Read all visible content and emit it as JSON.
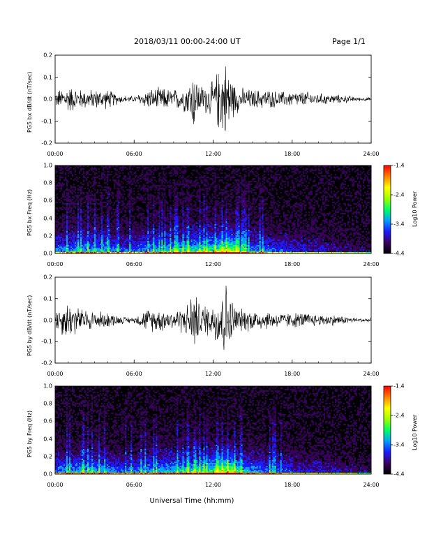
{
  "header": {
    "title": "2018/03/11  00:00-24:00 UT",
    "page": "Page 1/1"
  },
  "footer": {
    "xlabel": "Universal Time (hh:mm)"
  },
  "colors": {
    "trace": "#000000",
    "colorbar": [
      "#000000",
      "#3a0060",
      "#1a1aff",
      "#00a0ff",
      "#00ff60",
      "#a0ff00",
      "#ffff00",
      "#ff8000",
      "#ff0000"
    ]
  },
  "chart_data": [
    {
      "type": "line",
      "ylabel": "PG5 bx dB/dt (nT/sec)",
      "xticks": [
        "00:00",
        "06:00",
        "12:00",
        "18:00",
        "24:00"
      ],
      "yticks": [
        "0.2",
        "0.1",
        "0.0",
        "-0.1",
        "-0.2"
      ],
      "xlim": [
        0,
        24
      ],
      "ylim": [
        -0.2,
        0.2
      ],
      "x_units": "hours UT",
      "amplitude_envelope": {
        "hours": [
          0,
          1,
          2,
          3,
          4,
          5,
          6,
          7,
          8,
          9,
          10,
          10.5,
          11,
          12,
          12.5,
          13,
          13.5,
          14,
          15,
          16,
          17,
          18,
          19,
          20,
          21,
          22,
          23,
          24
        ],
        "amp": [
          0.04,
          0.07,
          0.05,
          0.05,
          0.05,
          0.02,
          0.015,
          0.05,
          0.06,
          0.05,
          0.07,
          0.16,
          0.07,
          0.09,
          0.18,
          0.2,
          0.1,
          0.06,
          0.05,
          0.05,
          0.04,
          0.04,
          0.04,
          0.03,
          0.025,
          0.02,
          0.01,
          0.008
        ]
      }
    },
    {
      "type": "heatmap",
      "ylabel": "PG5 bx Freq (Hz)",
      "xticks": [
        "00:00",
        "06:00",
        "12:00",
        "18:00",
        "24:00"
      ],
      "yticks": [
        "1.0",
        "0.8",
        "0.6",
        "0.4",
        "0.2",
        "0.0"
      ],
      "xlim": [
        0,
        24
      ],
      "ylim": [
        0,
        1.0
      ],
      "colorbar_label": "Log10 Power",
      "colorbar_ticks": [
        "-1.4",
        "-2.4",
        "-3.4",
        "-4.4"
      ],
      "color_range": [
        -4.4,
        -1.4
      ]
    },
    {
      "type": "line",
      "ylabel": "PG5 by dB/dt (nT/sec)",
      "xticks": [
        "00:00",
        "06:00",
        "12:00",
        "18:00",
        "24:00"
      ],
      "yticks": [
        "0.2",
        "0.1",
        "0.0",
        "-0.1",
        "-0.2"
      ],
      "xlim": [
        0,
        24
      ],
      "ylim": [
        -0.2,
        0.2
      ],
      "x_units": "hours UT",
      "amplitude_envelope": {
        "hours": [
          0,
          1,
          2,
          3,
          4,
          5,
          6,
          7,
          8,
          9,
          10,
          10.5,
          11,
          12,
          12.5,
          13,
          13.5,
          14,
          15,
          16,
          17,
          18,
          19,
          20,
          21,
          22,
          23,
          24
        ],
        "amp": [
          0.06,
          0.1,
          0.06,
          0.05,
          0.04,
          0.02,
          0.015,
          0.06,
          0.06,
          0.05,
          0.08,
          0.17,
          0.08,
          0.09,
          0.19,
          0.2,
          0.1,
          0.06,
          0.06,
          0.05,
          0.04,
          0.04,
          0.04,
          0.03,
          0.03,
          0.02,
          0.012,
          0.01
        ]
      }
    },
    {
      "type": "heatmap",
      "ylabel": "PG5 by Freq (Hz)",
      "xticks": [
        "00:00",
        "06:00",
        "12:00",
        "18:00",
        "24:00"
      ],
      "yticks": [
        "1.0",
        "0.8",
        "0.6",
        "0.4",
        "0.2",
        "0.0"
      ],
      "xlim": [
        0,
        24
      ],
      "ylim": [
        0,
        1.0
      ],
      "colorbar_label": "Log10 Power",
      "colorbar_ticks": [
        "-1.4",
        "-2.4",
        "-3.4",
        "-4.4"
      ],
      "color_range": [
        -4.4,
        -1.4
      ]
    }
  ]
}
